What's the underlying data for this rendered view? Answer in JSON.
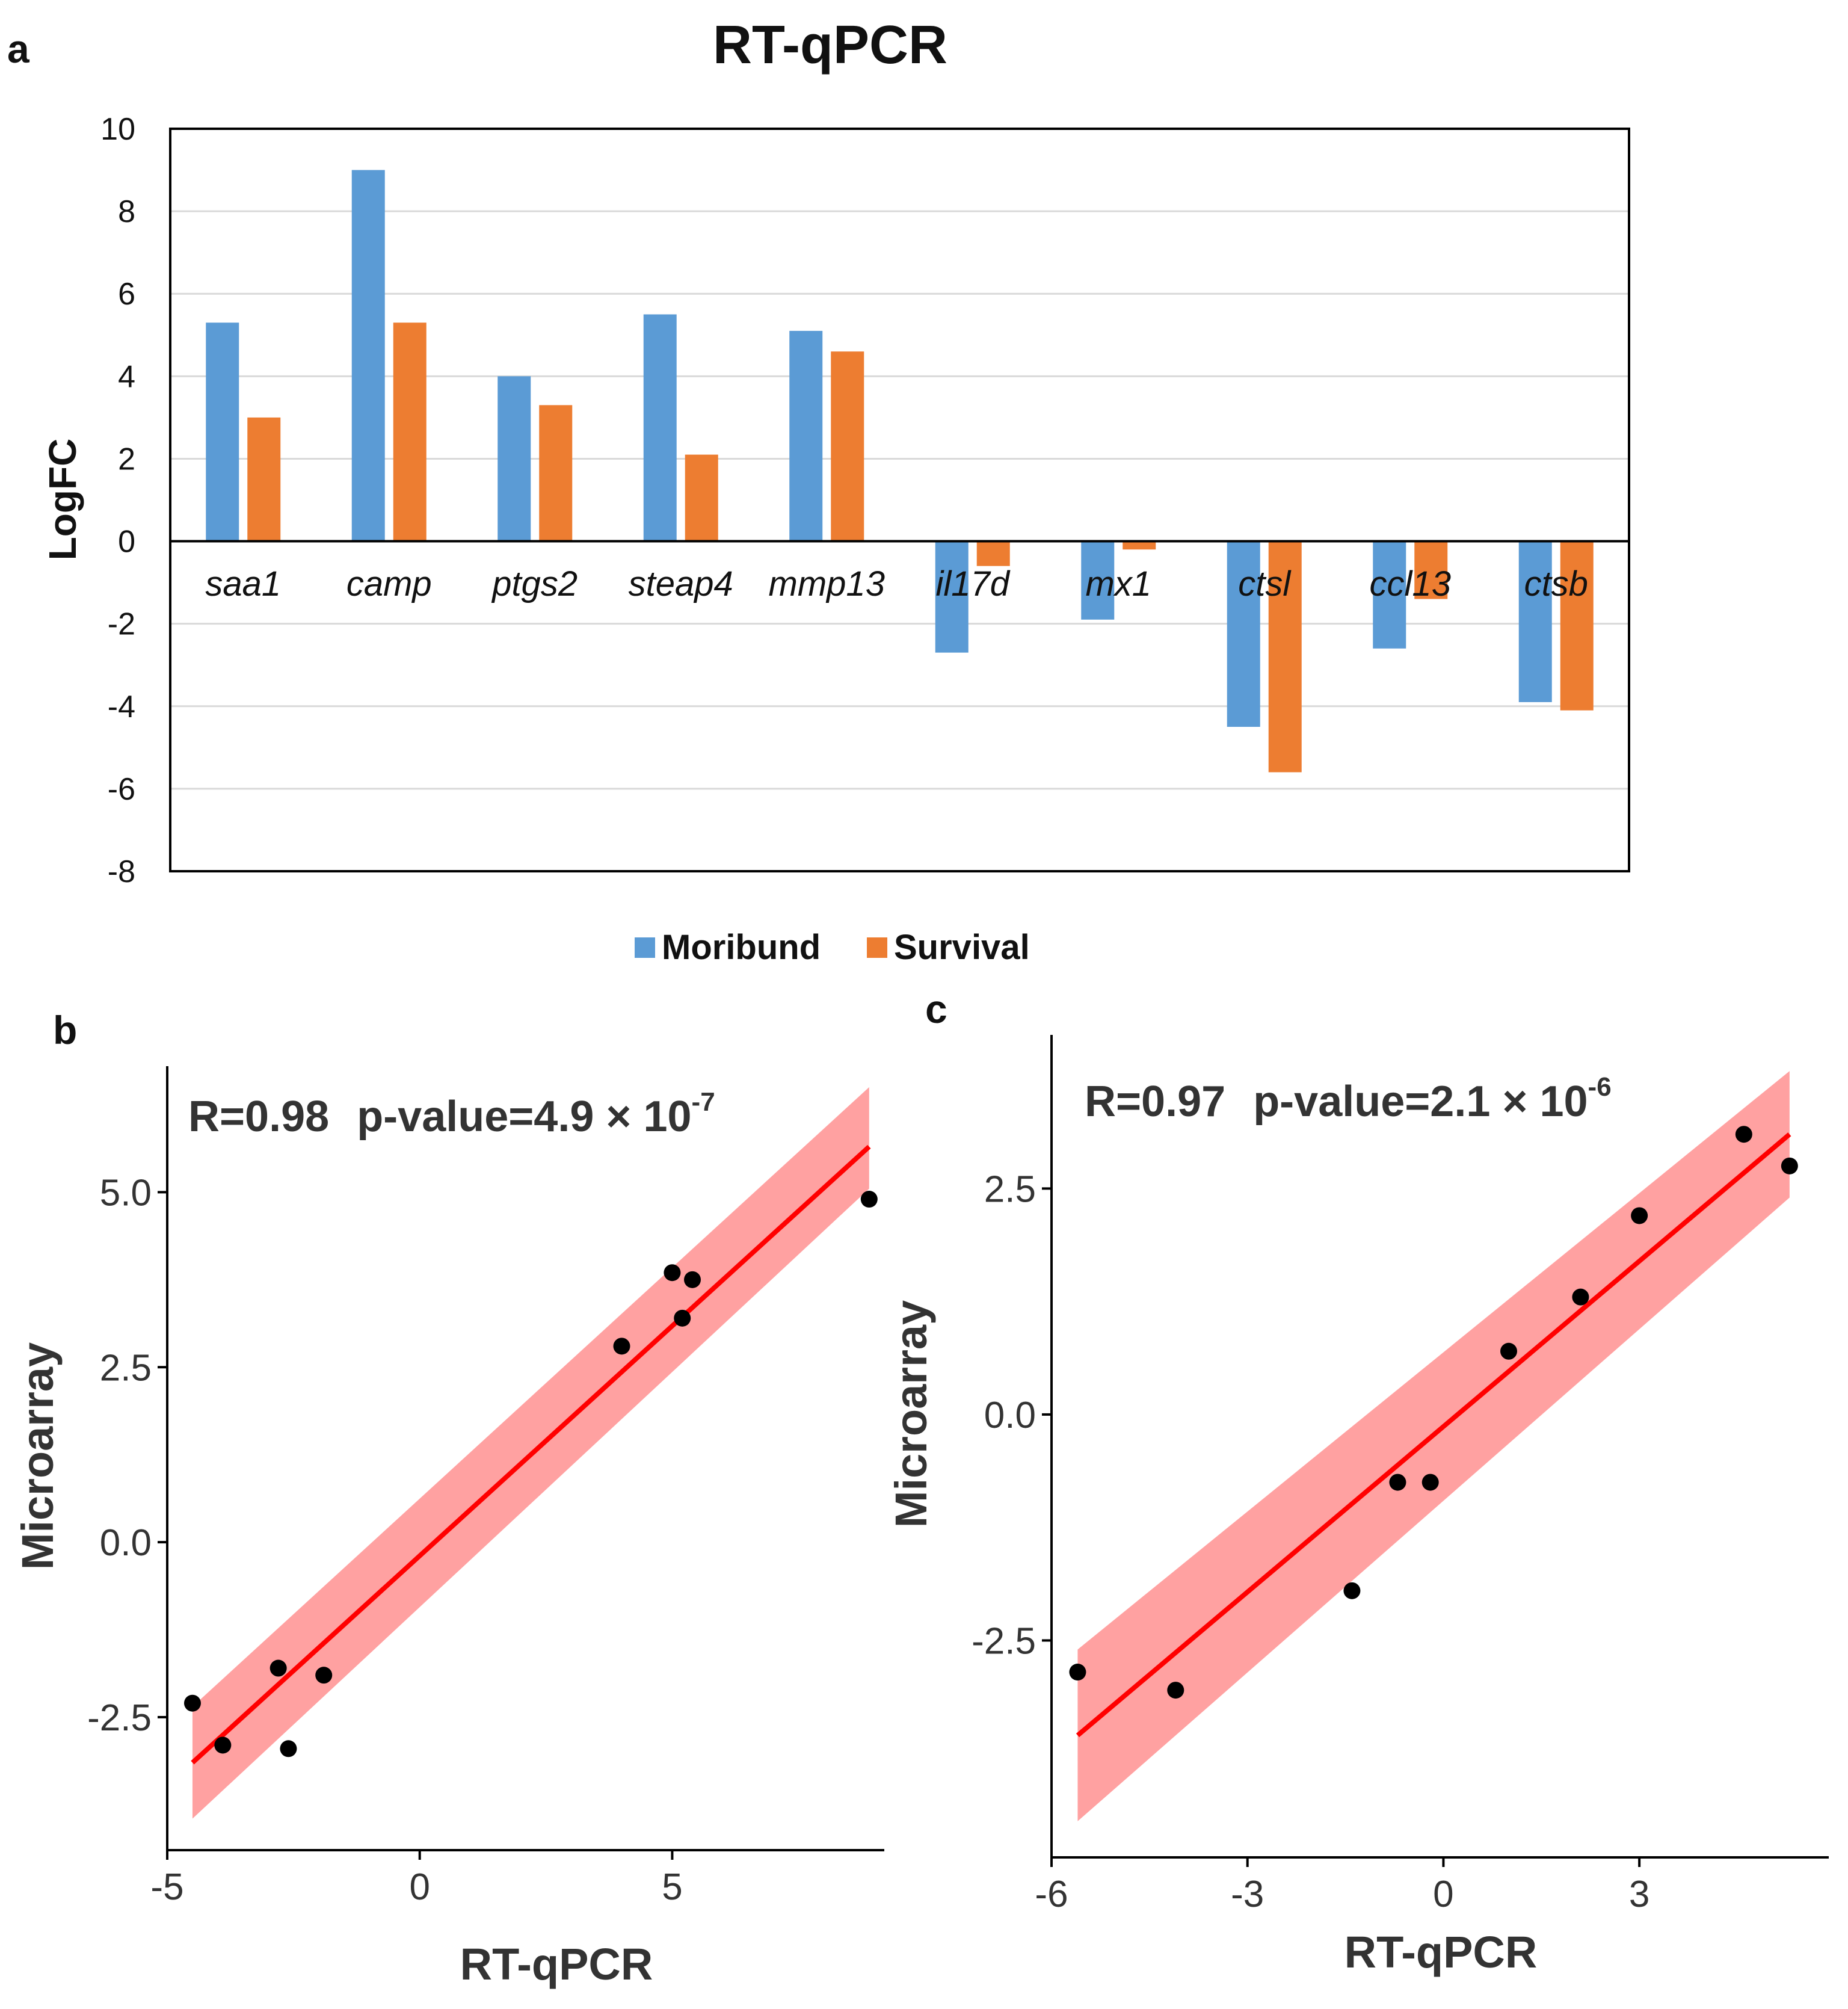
{
  "chart_data": [
    {
      "panel": "a",
      "type": "bar",
      "title": "RT-qPCR",
      "ylabel": "LogFC",
      "xlabel": "",
      "ylim": [
        -8,
        10
      ],
      "yticks": [
        10,
        8,
        6,
        4,
        2,
        0,
        -2,
        -4,
        -6,
        -8
      ],
      "categories": [
        "saa1",
        "camp",
        "ptgs2",
        "steap4",
        "mmp13",
        "il17d",
        "mx1",
        "ctsl",
        "ccl13",
        "ctsb"
      ],
      "series": [
        {
          "name": "Moribund",
          "color": "#5b9bd5",
          "values": [
            5.3,
            9.0,
            4.0,
            5.5,
            5.1,
            -2.7,
            -1.9,
            -4.5,
            -2.6,
            -3.9
          ]
        },
        {
          "name": "Survival",
          "color": "#ed7d31",
          "values": [
            3.0,
            5.3,
            3.3,
            2.1,
            4.6,
            -0.6,
            -0.2,
            -5.6,
            -1.4,
            -4.1
          ]
        }
      ],
      "legend": "bottom",
      "grid": true
    },
    {
      "panel": "b",
      "type": "scatter",
      "xlabel": "RT-qPCR",
      "ylabel": "Microarray",
      "annotation": {
        "r_text": "R=0.98",
        "p_text": "p-value=4.9 × 10",
        "p_exp": "-7"
      },
      "xticks": [
        "-5",
        "0",
        "5"
      ],
      "xtick_values": [
        -5,
        0,
        5
      ],
      "yticks": [
        "5.0",
        "2.5",
        "0.0",
        "-2.5"
      ],
      "ytick_values": [
        5.0,
        2.5,
        0.0,
        -2.5
      ],
      "xlim": [
        -5.0,
        9.2
      ],
      "ylim": [
        -4.4,
        6.8
      ],
      "points": [
        {
          "x": -4.5,
          "y": -2.3
        },
        {
          "x": -3.9,
          "y": -2.9
        },
        {
          "x": -2.8,
          "y": -1.8
        },
        {
          "x": -2.6,
          "y": -2.95
        },
        {
          "x": -1.9,
          "y": -1.9
        },
        {
          "x": 4.0,
          "y": 2.8
        },
        {
          "x": 5.0,
          "y": 3.85
        },
        {
          "x": 5.2,
          "y": 3.2
        },
        {
          "x": 5.4,
          "y": 3.75
        },
        {
          "x": 8.9,
          "y": 4.9
        }
      ],
      "fit": {
        "x": [
          -4.5,
          8.9
        ],
        "y": [
          -3.15,
          5.65
        ],
        "ci_low": [
          -3.95,
          5.05
        ],
        "ci_high": [
          -2.35,
          6.5
        ]
      },
      "line_color": "#ff0000",
      "band_color": "#ff9090"
    },
    {
      "panel": "c",
      "type": "scatter",
      "xlabel": "RT-qPCR",
      "ylabel": "Microarray",
      "annotation": {
        "r_text": "R=0.97",
        "p_text": "p-value=2.1 × 10",
        "p_exp": "-6"
      },
      "xticks": [
        "-6",
        "-3",
        "0",
        "3"
      ],
      "xtick_values": [
        -6,
        -3,
        0,
        3
      ],
      "yticks": [
        "2.5",
        "0.0",
        "-2.5"
      ],
      "ytick_values": [
        2.5,
        0.0,
        -2.5
      ],
      "xlim": [
        -6.0,
        5.9
      ],
      "ylim": [
        -4.9,
        4.2
      ],
      "points": [
        {
          "x": -5.6,
          "y": -2.85
        },
        {
          "x": -4.1,
          "y": -3.05
        },
        {
          "x": -1.4,
          "y": -1.95
        },
        {
          "x": -0.7,
          "y": -0.75
        },
        {
          "x": -0.2,
          "y": -0.75
        },
        {
          "x": 1.0,
          "y": 0.7
        },
        {
          "x": 2.1,
          "y": 1.3
        },
        {
          "x": 3.0,
          "y": 2.2
        },
        {
          "x": 4.6,
          "y": 3.1
        },
        {
          "x": 5.3,
          "y": 2.75
        }
      ],
      "fit": {
        "x": [
          -5.6,
          5.3
        ],
        "y": [
          -3.55,
          3.1
        ],
        "ci_low": [
          -4.5,
          2.4
        ],
        "ci_high": [
          -2.6,
          3.8
        ]
      },
      "line_color": "#ff0000",
      "band_color": "#ff9090"
    }
  ],
  "panels": {
    "a": "a",
    "b": "b",
    "c": "c"
  }
}
